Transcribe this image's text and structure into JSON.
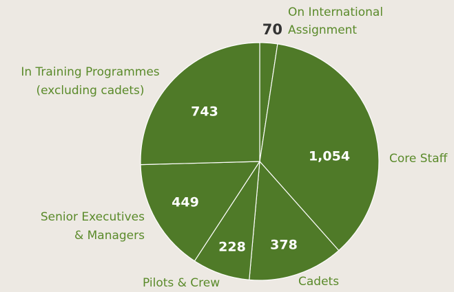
{
  "chart_data": {
    "type": "pie",
    "categories": [
      [
        "On International",
        "Assignment"
      ],
      [
        "Core Staff"
      ],
      [
        "Cadets"
      ],
      [
        "Pilots & Crew"
      ],
      [
        "Senior Executives",
        "& Managers"
      ],
      [
        "In Training Programmes",
        "(excluding cadets)"
      ]
    ],
    "values": [
      70,
      1054,
      378,
      228,
      449,
      743
    ],
    "value_labels": [
      "70",
      "1,054",
      "378",
      "228",
      "449",
      "743"
    ],
    "color": "#4f7a28"
  }
}
